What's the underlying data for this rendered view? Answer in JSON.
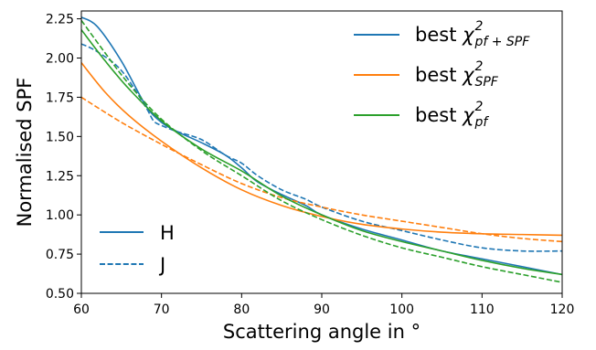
{
  "chart_data": {
    "type": "line",
    "xlabel": "Scattering angle in °",
    "ylabel": "Normalised SPF",
    "xlim": [
      60,
      120
    ],
    "ylim": [
      0.5,
      2.3
    ],
    "xticks": [
      "60",
      "70",
      "80",
      "90",
      "100",
      "110",
      "120"
    ],
    "yticks": [
      "0.50",
      "0.75",
      "1.00",
      "1.25",
      "1.50",
      "1.75",
      "2.00",
      "2.25"
    ],
    "grid": false,
    "series": [
      {
        "name": "best χ²pf+SPF",
        "color": "#1f77b4",
        "curves": [
          {
            "band": "H",
            "style": "solid",
            "x": [
              60,
              62,
              65,
              68,
              70,
              72,
              75,
              78,
              80,
              82,
              85,
              88,
              90,
              95,
              100,
              105,
              110,
              115,
              120
            ],
            "y": [
              2.26,
              2.2,
              1.98,
              1.7,
              1.59,
              1.53,
              1.46,
              1.38,
              1.3,
              1.21,
              1.13,
              1.06,
              1.0,
              0.91,
              0.84,
              0.77,
              0.72,
              0.67,
              0.62
            ]
          },
          {
            "band": "J",
            "style": "dashed",
            "x": [
              60,
              62,
              65,
              68,
              69,
              70,
              72,
              75,
              78,
              80,
              82,
              85,
              88,
              90,
              95,
              100,
              105,
              110,
              115,
              120
            ],
            "y": [
              2.09,
              2.04,
              1.92,
              1.69,
              1.6,
              1.57,
              1.53,
              1.48,
              1.38,
              1.33,
              1.25,
              1.16,
              1.1,
              1.05,
              0.96,
              0.9,
              0.84,
              0.79,
              0.77,
              0.77
            ]
          }
        ]
      },
      {
        "name": "best χ²SPF",
        "color": "#ff7f0e",
        "curves": [
          {
            "band": "H",
            "style": "solid",
            "x": [
              60,
              63,
              66,
              70,
              75,
              80,
              85,
              90,
              95,
              100,
              105,
              110,
              115,
              120
            ],
            "y": [
              1.97,
              1.78,
              1.63,
              1.47,
              1.3,
              1.16,
              1.06,
              0.99,
              0.94,
              0.91,
              0.89,
              0.88,
              0.875,
              0.87
            ]
          },
          {
            "band": "J",
            "style": "dashed",
            "x": [
              60,
              65,
              70,
              75,
              80,
              85,
              90,
              95,
              100,
              105,
              110,
              115,
              120
            ],
            "y": [
              1.75,
              1.59,
              1.45,
              1.32,
              1.2,
              1.11,
              1.05,
              1.0,
              0.96,
              0.92,
              0.88,
              0.85,
              0.83
            ]
          }
        ]
      },
      {
        "name": "best χ²pf",
        "color": "#2ca02c",
        "curves": [
          {
            "band": "H",
            "style": "solid",
            "x": [
              60,
              63,
              66,
              70,
              75,
              80,
              85,
              90,
              95,
              100,
              105,
              110,
              115,
              120
            ],
            "y": [
              2.18,
              1.98,
              1.8,
              1.6,
              1.42,
              1.28,
              1.12,
              1.0,
              0.9,
              0.83,
              0.77,
              0.71,
              0.66,
              0.62
            ]
          },
          {
            "band": "J",
            "style": "dashed",
            "x": [
              60,
              63,
              66,
              70,
              75,
              80,
              85,
              90,
              95,
              100,
              105,
              110,
              115,
              120
            ],
            "y": [
              2.24,
              2.03,
              1.83,
              1.61,
              1.41,
              1.25,
              1.09,
              0.97,
              0.87,
              0.79,
              0.73,
              0.67,
              0.62,
              0.57
            ]
          }
        ]
      }
    ],
    "legend_top": {
      "placement": "top-right",
      "entries": [
        {
          "prefix": "best ",
          "symbol": "χ",
          "sup": "2",
          "sub": "pf + SPF",
          "color": "#1f77b4"
        },
        {
          "prefix": "best ",
          "symbol": "χ",
          "sup": "2",
          "sub": "SPF",
          "color": "#ff7f0e"
        },
        {
          "prefix": "best ",
          "symbol": "χ",
          "sup": "2",
          "sub": "pf",
          "color": "#2ca02c"
        }
      ]
    },
    "legend_bottom": {
      "placement": "lower-left",
      "entries": [
        {
          "label": "H",
          "style": "solid",
          "color": "#1f77b4"
        },
        {
          "label": "J",
          "style": "dashed",
          "color": "#1f77b4"
        }
      ]
    }
  }
}
